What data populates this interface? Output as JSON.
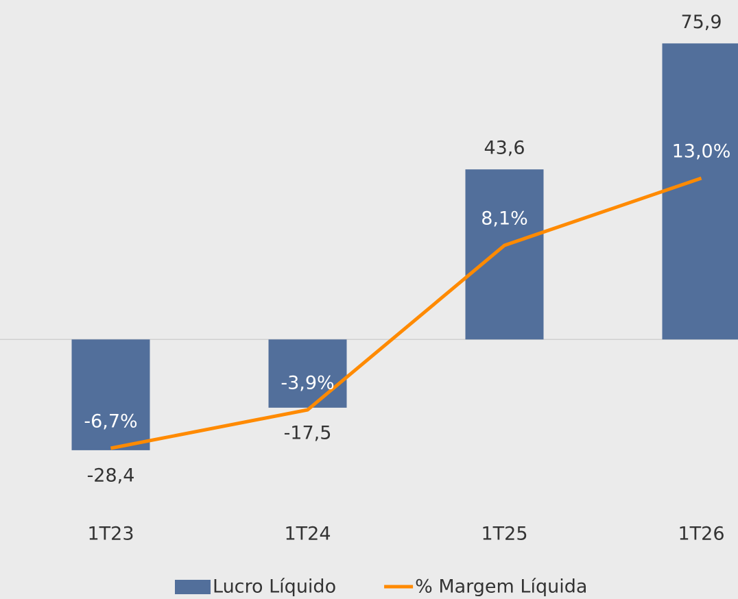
{
  "chart_data": {
    "type": "bar_line",
    "categories": [
      "1T23",
      "1T24",
      "1T25",
      "1T26"
    ],
    "series": [
      {
        "name": "Lucro Líquido",
        "type": "bar",
        "color": "#526f9b",
        "values": [
          -28.4,
          -17.5,
          43.6,
          75.9
        ],
        "value_labels": [
          "-28,4",
          "-17,5",
          "43,6",
          "75,9"
        ]
      },
      {
        "name": "% Margem Líquida",
        "type": "line",
        "axis": "y2",
        "color": "#ff8a00",
        "values": [
          -6.7,
          -3.9,
          8.1,
          13.0
        ],
        "value_labels": [
          "-6,7%",
          "-3,9%",
          "8,1%",
          "13,0%"
        ]
      }
    ],
    "ylim": [
      -43,
      80
    ],
    "y2lim": [
      -11,
      24
    ],
    "legend": "bottom"
  }
}
